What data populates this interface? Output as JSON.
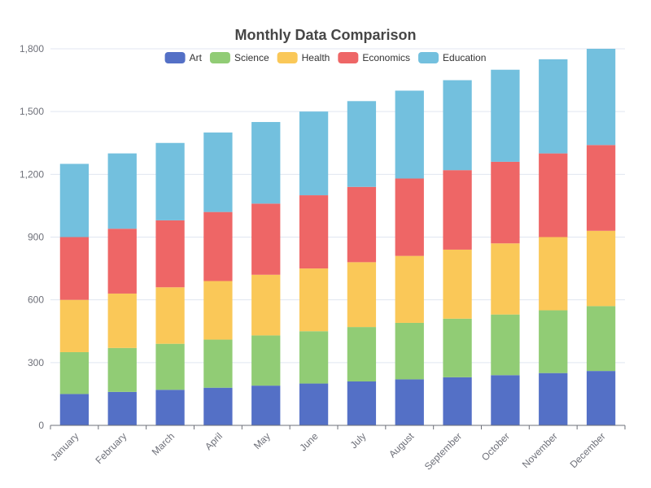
{
  "chart_data": {
    "type": "bar",
    "stacked": true,
    "title": "Monthly Data Comparison",
    "categories": [
      "January",
      "February",
      "March",
      "April",
      "May",
      "June",
      "July",
      "August",
      "September",
      "October",
      "November",
      "December"
    ],
    "series": [
      {
        "name": "Art",
        "color": "#5470c6",
        "values": [
          150,
          160,
          170,
          180,
          190,
          200,
          210,
          220,
          230,
          240,
          250,
          260
        ]
      },
      {
        "name": "Science",
        "color": "#91cc75",
        "values": [
          200,
          210,
          220,
          230,
          240,
          250,
          260,
          270,
          280,
          290,
          300,
          310
        ]
      },
      {
        "name": "Health",
        "color": "#fac858",
        "values": [
          250,
          260,
          270,
          280,
          290,
          300,
          310,
          320,
          330,
          340,
          350,
          360
        ]
      },
      {
        "name": "Economics",
        "color": "#ee6666",
        "values": [
          300,
          310,
          320,
          330,
          340,
          350,
          360,
          370,
          380,
          390,
          400,
          410
        ]
      },
      {
        "name": "Education",
        "color": "#73c0de",
        "values": [
          350,
          360,
          370,
          380,
          390,
          400,
          410,
          420,
          430,
          440,
          450,
          460
        ]
      }
    ],
    "ylim": [
      0,
      1800
    ],
    "yticks": [
      "0",
      "300",
      "600",
      "900",
      "1,200",
      "1,500",
      "1,800"
    ],
    "ytick_values": [
      0,
      300,
      600,
      900,
      1200,
      1500,
      1800
    ],
    "grid": true,
    "legend_position": "top-center"
  }
}
